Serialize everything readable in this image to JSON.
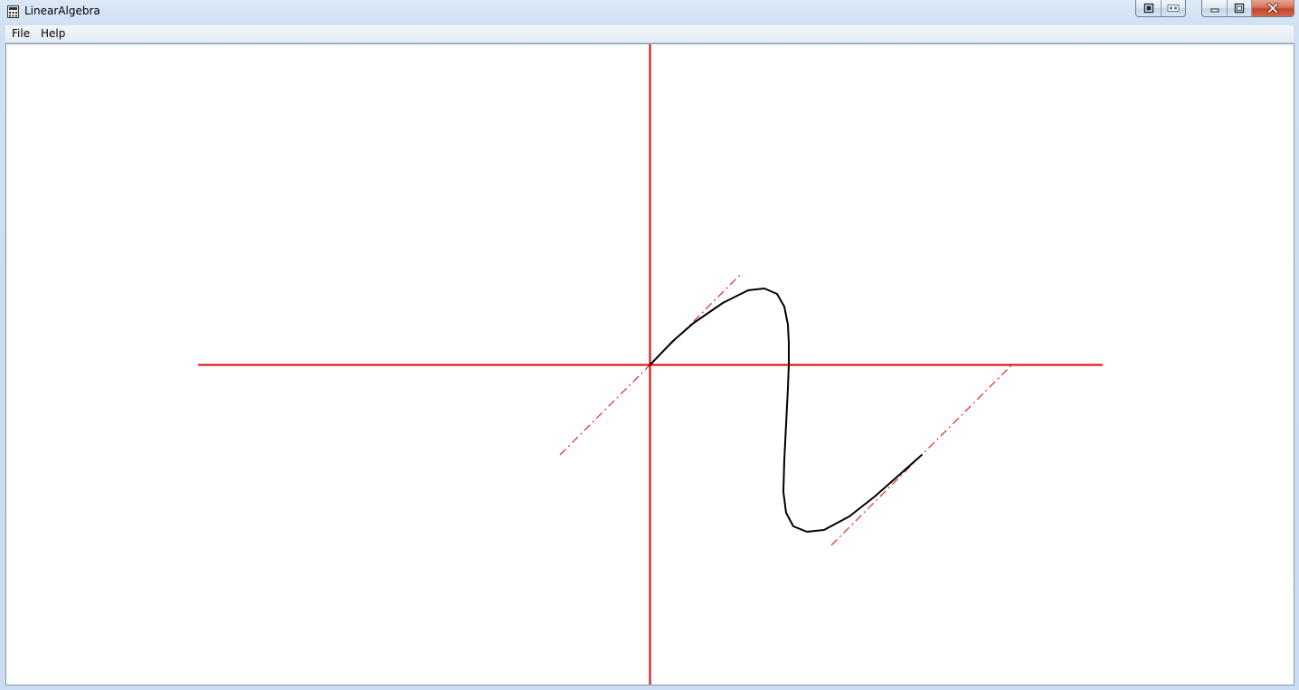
{
  "window": {
    "title": "LinearAlgebra",
    "icon": "calculator-icon"
  },
  "title_controls": [
    {
      "name": "extra-button-1-icon"
    },
    {
      "name": "extra-button-2-icon"
    },
    {
      "name": "minimize-icon"
    },
    {
      "name": "maximize-icon"
    },
    {
      "name": "close-icon"
    }
  ],
  "menu": {
    "items": [
      {
        "label": "File"
      },
      {
        "label": "Help"
      }
    ]
  },
  "canvas": {
    "axis_color": "#e00000",
    "curve_color": "#000000",
    "guide_color": "#e00000",
    "background": "#ffffff"
  }
}
